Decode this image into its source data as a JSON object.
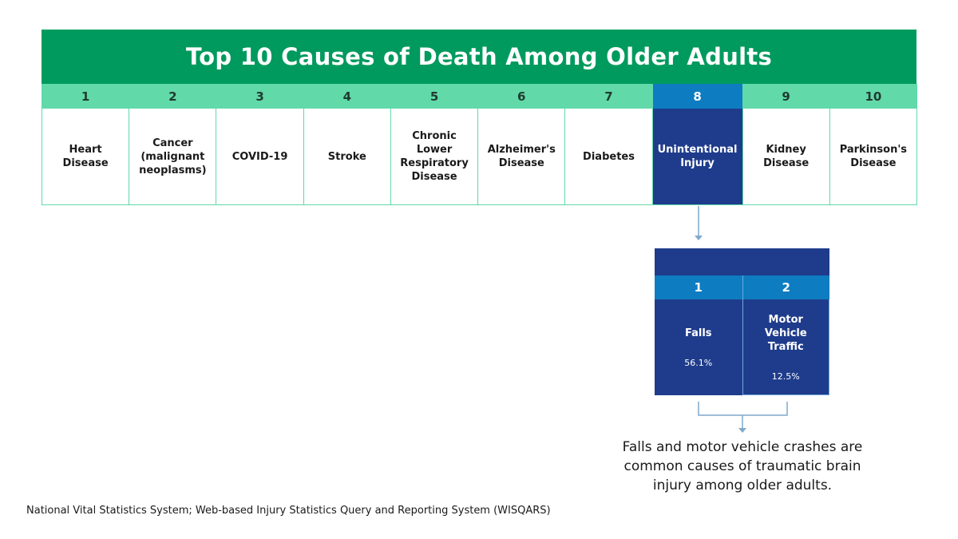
{
  "title": "Top 10 Causes of Death Among Older Adults",
  "causes": [
    {
      "rank": "1",
      "name": "Heart Disease"
    },
    {
      "rank": "2",
      "name": "Cancer (malignant neoplasms)"
    },
    {
      "rank": "3",
      "name": "COVID-19"
    },
    {
      "rank": "4",
      "name": "Stroke"
    },
    {
      "rank": "5",
      "name": "Chronic Lower Respiratory Disease"
    },
    {
      "rank": "6",
      "name": "Alzheimer's Disease"
    },
    {
      "rank": "7",
      "name": "Diabetes"
    },
    {
      "rank": "8",
      "name": "Unintentional Injury"
    },
    {
      "rank": "9",
      "name": "Kidney Disease"
    },
    {
      "rank": "10",
      "name": "Parkinson's Disease"
    }
  ],
  "highlighted_rank": "8",
  "injury_breakdown": [
    {
      "rank": "1",
      "name": "Falls",
      "percent": "56.1%"
    },
    {
      "rank": "2",
      "name": "Motor Vehicle Traffic",
      "percent": "12.5%"
    }
  ],
  "caption": "Falls and motor vehicle crashes are common causes of traumatic brain injury among older adults.",
  "source": "National Vital Statistics System; Web-based Injury Statistics Query and Reporting System (WISQARS)",
  "colors": {
    "banner_green": "#009a5e",
    "light_green": "#61d9a9",
    "highlight_blue": "#0e7cc1",
    "navy": "#1f3c8c",
    "connector": "#7fa9cc"
  }
}
